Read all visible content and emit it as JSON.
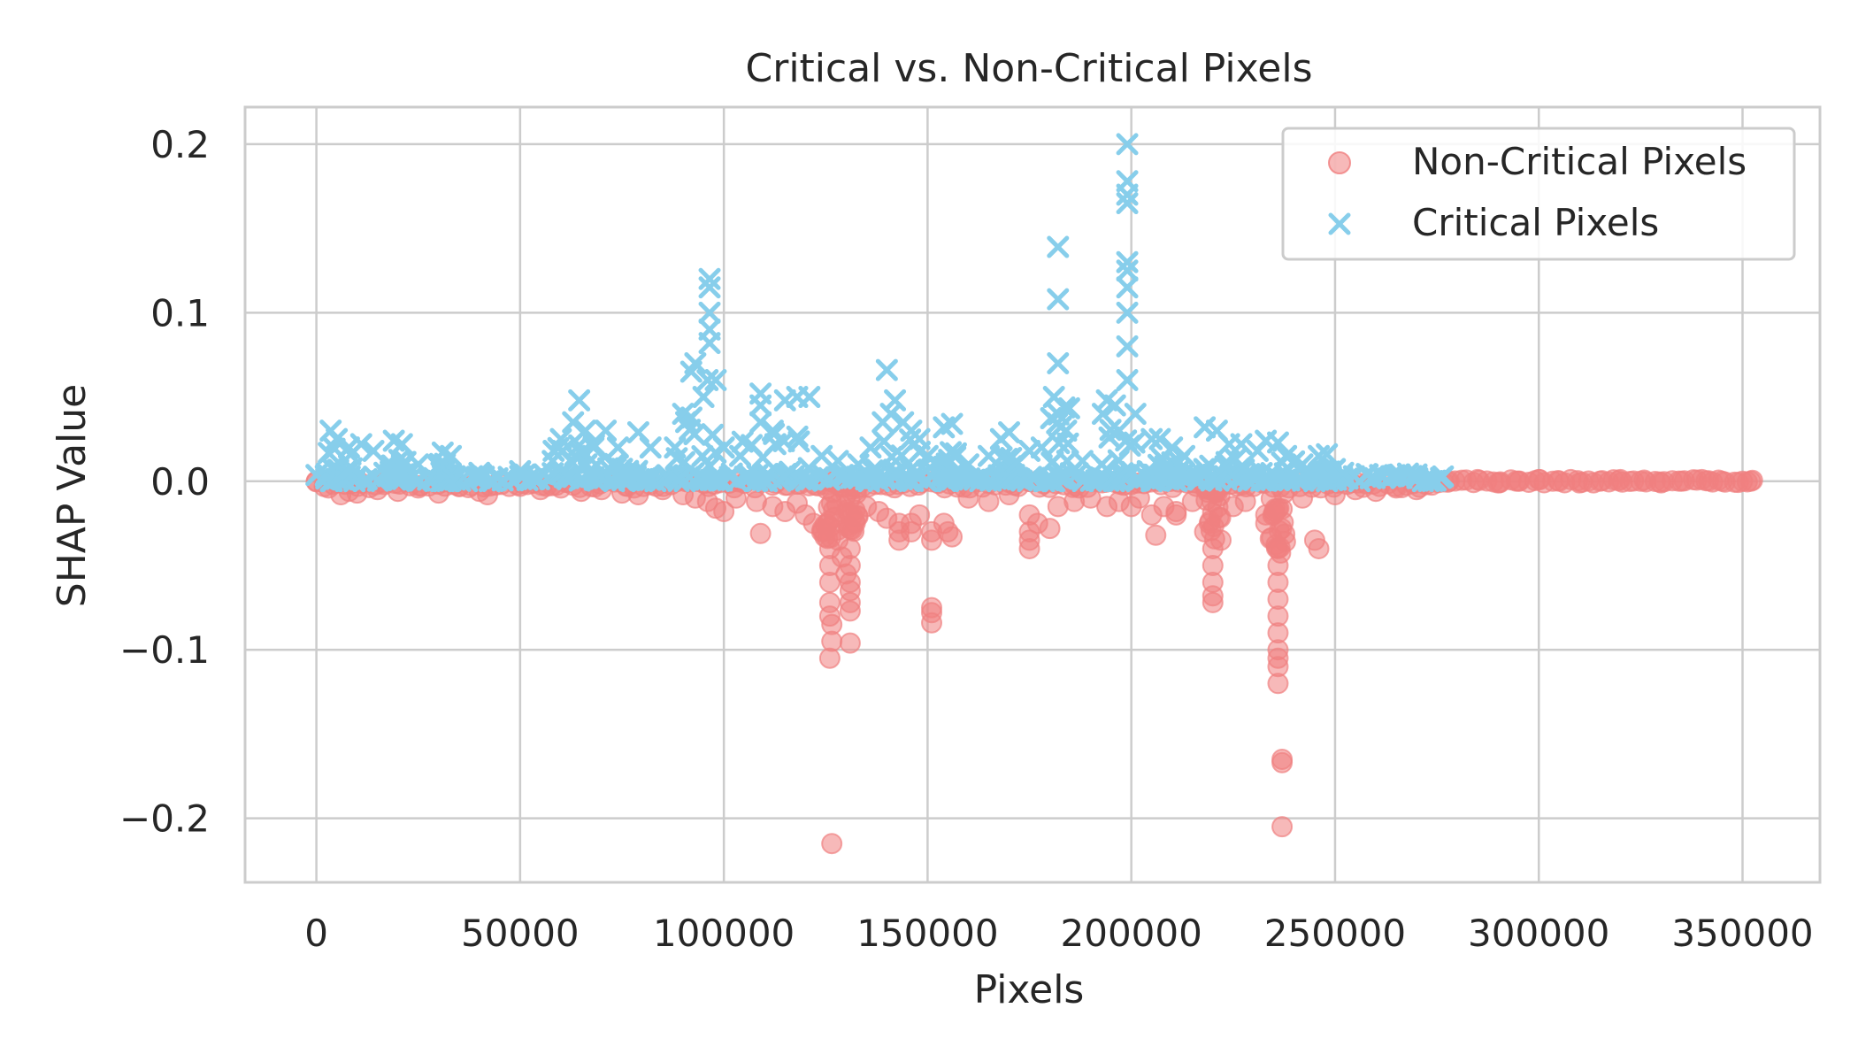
{
  "chart_data": {
    "type": "scatter",
    "title": "Critical vs. Non-Critical Pixels",
    "xlabel": "Pixels",
    "ylabel": "SHAP Value",
    "xlim": [
      -17500,
      369000
    ],
    "ylim": [
      -0.238,
      0.222
    ],
    "xticks": [
      0,
      50000,
      100000,
      150000,
      200000,
      250000,
      300000,
      350000
    ],
    "xtick_labels": [
      "0",
      "50000",
      "100000",
      "150000",
      "200000",
      "250000",
      "300000",
      "350000"
    ],
    "yticks": [
      -0.2,
      -0.1,
      0.0,
      0.1,
      0.2
    ],
    "ytick_labels": [
      "−0.2",
      "−0.1",
      "0.0",
      "0.1",
      "0.2"
    ],
    "grid": true,
    "legend_position": "upper right",
    "series": [
      {
        "name": "Non-Critical Pixels",
        "marker": "circle",
        "color": "#f08080",
        "points": [
          [
            0,
            0.0
          ],
          [
            3000,
            -0.004
          ],
          [
            6000,
            -0.008
          ],
          [
            8000,
            -0.006
          ],
          [
            10000,
            -0.007
          ],
          [
            15000,
            -0.005
          ],
          [
            20000,
            -0.006
          ],
          [
            25000,
            -0.004
          ],
          [
            30000,
            -0.007
          ],
          [
            35000,
            -0.003
          ],
          [
            40000,
            -0.006
          ],
          [
            42000,
            -0.008
          ],
          [
            50000,
            -0.003
          ],
          [
            55000,
            -0.005
          ],
          [
            60000,
            -0.004
          ],
          [
            65000,
            -0.006
          ],
          [
            70000,
            -0.005
          ],
          [
            75000,
            -0.007
          ],
          [
            79000,
            -0.008
          ],
          [
            85000,
            -0.005
          ],
          [
            90000,
            -0.008
          ],
          [
            93000,
            -0.01
          ],
          [
            96000,
            -0.012
          ],
          [
            98000,
            -0.016
          ],
          [
            100000,
            -0.018
          ],
          [
            103000,
            -0.01
          ],
          [
            108000,
            -0.012
          ],
          [
            109000,
            -0.031
          ],
          [
            112000,
            -0.015
          ],
          [
            115000,
            -0.018
          ],
          [
            118000,
            -0.013
          ],
          [
            120000,
            -0.02
          ],
          [
            122000,
            -0.025
          ],
          [
            124000,
            -0.03
          ],
          [
            126000,
            -0.04
          ],
          [
            126000,
            -0.05
          ],
          [
            126000,
            -0.06
          ],
          [
            126000,
            -0.072
          ],
          [
            126000,
            -0.08
          ],
          [
            126500,
            -0.085
          ],
          [
            126500,
            -0.095
          ],
          [
            126000,
            -0.105
          ],
          [
            126500,
            -0.215
          ],
          [
            128000,
            -0.035
          ],
          [
            129000,
            -0.045
          ],
          [
            130000,
            -0.055
          ],
          [
            131000,
            -0.04
          ],
          [
            131000,
            -0.05
          ],
          [
            131000,
            -0.06
          ],
          [
            131000,
            -0.065
          ],
          [
            131000,
            -0.072
          ],
          [
            131000,
            -0.077
          ],
          [
            131000,
            -0.096
          ],
          [
            135000,
            -0.015
          ],
          [
            138000,
            -0.018
          ],
          [
            140000,
            -0.022
          ],
          [
            143000,
            -0.025
          ],
          [
            143000,
            -0.03
          ],
          [
            143000,
            -0.035
          ],
          [
            146000,
            -0.025
          ],
          [
            146000,
            -0.03
          ],
          [
            148000,
            -0.02
          ],
          [
            151000,
            -0.03
          ],
          [
            151000,
            -0.035
          ],
          [
            151000,
            -0.075
          ],
          [
            151000,
            -0.078
          ],
          [
            151000,
            -0.084
          ],
          [
            154000,
            -0.025
          ],
          [
            155000,
            -0.03
          ],
          [
            156000,
            -0.033
          ],
          [
            160000,
            -0.01
          ],
          [
            165000,
            -0.012
          ],
          [
            170000,
            -0.008
          ],
          [
            175000,
            -0.02
          ],
          [
            175000,
            -0.03
          ],
          [
            175000,
            -0.035
          ],
          [
            175000,
            -0.04
          ],
          [
            177000,
            -0.025
          ],
          [
            180000,
            -0.028
          ],
          [
            182000,
            -0.015
          ],
          [
            186000,
            -0.012
          ],
          [
            190000,
            -0.01
          ],
          [
            194000,
            -0.015
          ],
          [
            197000,
            -0.012
          ],
          [
            200000,
            -0.015
          ],
          [
            202000,
            -0.01
          ],
          [
            205000,
            -0.02
          ],
          [
            206000,
            -0.032
          ],
          [
            208000,
            -0.015
          ],
          [
            211000,
            -0.02
          ],
          [
            211000,
            -0.018
          ],
          [
            215000,
            -0.012
          ],
          [
            218000,
            -0.03
          ],
          [
            220000,
            -0.04
          ],
          [
            220000,
            -0.05
          ],
          [
            220000,
            -0.06
          ],
          [
            220000,
            -0.068
          ],
          [
            220000,
            -0.072
          ],
          [
            222000,
            -0.035
          ],
          [
            225000,
            -0.015
          ],
          [
            228000,
            -0.012
          ],
          [
            233000,
            -0.02
          ],
          [
            233000,
            -0.025
          ],
          [
            236000,
            -0.04
          ],
          [
            236000,
            -0.05
          ],
          [
            236000,
            -0.06
          ],
          [
            236000,
            -0.07
          ],
          [
            236000,
            -0.08
          ],
          [
            236000,
            -0.09
          ],
          [
            236000,
            -0.1
          ],
          [
            236000,
            -0.105
          ],
          [
            236000,
            -0.11
          ],
          [
            236000,
            -0.12
          ],
          [
            237000,
            -0.165
          ],
          [
            237000,
            -0.167
          ],
          [
            237000,
            -0.205
          ],
          [
            242000,
            -0.01
          ],
          [
            245000,
            -0.035
          ],
          [
            246000,
            -0.04
          ],
          [
            250000,
            -0.008
          ],
          [
            255000,
            -0.005
          ],
          [
            260000,
            -0.006
          ],
          [
            265000,
            -0.004
          ],
          [
            270000,
            -0.005
          ],
          [
            278000,
            0.0
          ],
          [
            285000,
            0.001
          ],
          [
            290000,
            -0.001
          ],
          [
            295000,
            0.0
          ],
          [
            300000,
            0.001
          ],
          [
            305000,
            0.0
          ],
          [
            310000,
            -0.001
          ],
          [
            315000,
            0.0
          ],
          [
            320000,
            0.001
          ],
          [
            325000,
            0.0
          ],
          [
            330000,
            -0.001
          ],
          [
            335000,
            0.0
          ],
          [
            340000,
            0.001
          ],
          [
            345000,
            0.0
          ],
          [
            350000,
            0.0
          ],
          [
            352000,
            0.0
          ]
        ],
        "bands": [
          [
            0,
            277000,
            -0.004,
            0.0
          ],
          [
            124000,
            128000,
            -0.035,
            0.0
          ],
          [
            130000,
            133000,
            -0.03,
            0.0
          ],
          [
            218000,
            222000,
            -0.035,
            0.0
          ],
          [
            234000,
            238000,
            -0.045,
            0.0
          ],
          [
            277000,
            353000,
            -0.001,
            0.001
          ]
        ]
      },
      {
        "name": "Critical Pixels",
        "marker": "x",
        "color": "#87ceeb",
        "points": [
          [
            3500,
            0.03
          ],
          [
            5000,
            0.025
          ],
          [
            8000,
            0.02
          ],
          [
            11000,
            0.022
          ],
          [
            14000,
            0.018
          ],
          [
            19000,
            0.024
          ],
          [
            21000,
            0.022
          ],
          [
            25000,
            0.01
          ],
          [
            31000,
            0.017
          ],
          [
            33000,
            0.015
          ],
          [
            40000,
            0.005
          ],
          [
            50000,
            0.006
          ],
          [
            58000,
            0.012
          ],
          [
            60000,
            0.025
          ],
          [
            63000,
            0.035
          ],
          [
            64500,
            0.048
          ],
          [
            66000,
            0.03
          ],
          [
            68000,
            0.02
          ],
          [
            71000,
            0.03
          ],
          [
            74000,
            0.02
          ],
          [
            79000,
            0.029
          ],
          [
            82000,
            0.02
          ],
          [
            88000,
            0.02
          ],
          [
            90000,
            0.04
          ],
          [
            92000,
            0.065
          ],
          [
            93000,
            0.07
          ],
          [
            95000,
            0.05
          ],
          [
            96000,
            0.06
          ],
          [
            96500,
            0.082
          ],
          [
            96500,
            0.09
          ],
          [
            96500,
            0.1
          ],
          [
            96500,
            0.115
          ],
          [
            96500,
            0.12
          ],
          [
            98000,
            0.06
          ],
          [
            100000,
            0.02
          ],
          [
            104000,
            0.015
          ],
          [
            109000,
            0.052
          ],
          [
            109000,
            0.045
          ],
          [
            109000,
            0.035
          ],
          [
            112000,
            0.03
          ],
          [
            115000,
            0.048
          ],
          [
            118000,
            0.05
          ],
          [
            121000,
            0.05
          ],
          [
            124000,
            0.015
          ],
          [
            128000,
            0.012
          ],
          [
            133000,
            0.01
          ],
          [
            136000,
            0.02
          ],
          [
            139000,
            0.035
          ],
          [
            140000,
            0.066
          ],
          [
            141000,
            0.04
          ],
          [
            142000,
            0.048
          ],
          [
            144000,
            0.035
          ],
          [
            146000,
            0.03
          ],
          [
            148000,
            0.025
          ],
          [
            150000,
            0.015
          ],
          [
            154000,
            0.032
          ],
          [
            156000,
            0.034
          ],
          [
            160000,
            0.01
          ],
          [
            165000,
            0.015
          ],
          [
            168000,
            0.025
          ],
          [
            170000,
            0.029
          ],
          [
            175000,
            0.018
          ],
          [
            178000,
            0.02
          ],
          [
            181000,
            0.05
          ],
          [
            182000,
            0.07
          ],
          [
            182000,
            0.108
          ],
          [
            182000,
            0.139
          ],
          [
            184000,
            0.03
          ],
          [
            188000,
            0.012
          ],
          [
            193000,
            0.04
          ],
          [
            194000,
            0.048
          ],
          [
            196000,
            0.045
          ],
          [
            197000,
            0.03
          ],
          [
            199000,
            0.06
          ],
          [
            199000,
            0.08
          ],
          [
            199000,
            0.1
          ],
          [
            199000,
            0.115
          ],
          [
            199000,
            0.125
          ],
          [
            199000,
            0.13
          ],
          [
            199000,
            0.165
          ],
          [
            199000,
            0.17
          ],
          [
            199000,
            0.178
          ],
          [
            199000,
            0.2
          ],
          [
            201000,
            0.04
          ],
          [
            205000,
            0.025
          ],
          [
            207000,
            0.025
          ],
          [
            210000,
            0.02
          ],
          [
            213000,
            0.015
          ],
          [
            218000,
            0.032
          ],
          [
            221000,
            0.03
          ],
          [
            224000,
            0.022
          ],
          [
            227000,
            0.022
          ],
          [
            231000,
            0.018
          ],
          [
            233000,
            0.024
          ],
          [
            236000,
            0.023
          ],
          [
            238000,
            0.015
          ],
          [
            242000,
            0.01
          ],
          [
            246000,
            0.015
          ],
          [
            248000,
            0.016
          ],
          [
            252000,
            0.005
          ],
          [
            258000,
            0.004
          ],
          [
            264000,
            0.003
          ],
          [
            270000,
            0.004
          ],
          [
            276000,
            0.002
          ]
        ],
        "bands": [
          [
            0,
            277000,
            0.0,
            0.005
          ],
          [
            2000,
            9000,
            0.0,
            0.02
          ],
          [
            18000,
            22000,
            0.0,
            0.018
          ],
          [
            30000,
            34000,
            0.0,
            0.012
          ],
          [
            58000,
            70000,
            0.0,
            0.022
          ],
          [
            70000,
            82000,
            0.0,
            0.014
          ],
          [
            88000,
            99000,
            0.0,
            0.04
          ],
          [
            104000,
            122000,
            0.0,
            0.03
          ],
          [
            135000,
            150000,
            0.0,
            0.025
          ],
          [
            153000,
            158000,
            0.0,
            0.02
          ],
          [
            167000,
            172000,
            0.0,
            0.015
          ],
          [
            180000,
            185000,
            0.0,
            0.045
          ],
          [
            192000,
            202000,
            0.0,
            0.045
          ],
          [
            204000,
            213000,
            0.0,
            0.015
          ],
          [
            216000,
            240000,
            0.0,
            0.014
          ],
          [
            244000,
            250000,
            0.0,
            0.01
          ]
        ]
      }
    ]
  }
}
